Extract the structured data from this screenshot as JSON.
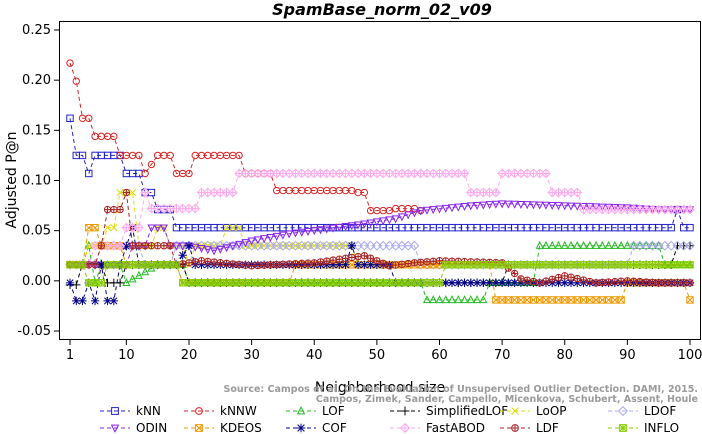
{
  "chart_data": {
    "type": "line",
    "title": "SpamBase_norm_02_v09",
    "xlabel": "Neighborhood size",
    "ylabel": "Adjusted P@n",
    "xlim": [
      1,
      100
    ],
    "ylim": [
      -0.05,
      0.25
    ],
    "x_ticks": [
      1,
      10,
      20,
      30,
      40,
      50,
      60,
      70,
      80,
      90,
      100
    ],
    "y_ticks": [
      "-0.05",
      "0.00",
      "0.05",
      "0.10",
      "0.15",
      "0.20",
      "0.25"
    ],
    "legend_position": "bottom",
    "watermark": [
      "Source: Campos et al. On the Evaluation of Unsupervised Outlier Detection. DAMI, 2015.",
      "Campos, Zimek, Sander, Campello, Micenkova, Schubert, Assent, Houle"
    ],
    "series": [
      {
        "name": "kNN",
        "color": "#2222cc",
        "marker": "square",
        "points": [
          [
            1,
            0.162
          ],
          [
            2,
            0.125
          ],
          [
            3,
            0.125
          ],
          [
            4,
            0.107
          ],
          [
            5,
            0.125
          ],
          [
            9,
            0.125
          ],
          [
            10,
            0.107
          ],
          [
            12,
            0.107
          ],
          [
            13,
            0.088
          ],
          [
            14,
            0.088
          ],
          [
            15,
            0.071
          ],
          [
            17,
            0.071
          ],
          [
            18,
            0.053
          ],
          [
            97,
            0.053
          ],
          [
            98,
            0.071
          ],
          [
            99,
            0.053
          ],
          [
            100,
            0.053
          ]
        ]
      },
      {
        "name": "kNNW",
        "color": "#dd2222",
        "marker": "circle",
        "points": [
          [
            1,
            0.217
          ],
          [
            2,
            0.199
          ],
          [
            3,
            0.162
          ],
          [
            4,
            0.162
          ],
          [
            5,
            0.144
          ],
          [
            8,
            0.144
          ],
          [
            9,
            0.125
          ],
          [
            12,
            0.125
          ],
          [
            13,
            0.107
          ],
          [
            15,
            0.125
          ],
          [
            17,
            0.125
          ],
          [
            18,
            0.107
          ],
          [
            20,
            0.107
          ],
          [
            21,
            0.125
          ],
          [
            28,
            0.125
          ],
          [
            29,
            0.107
          ],
          [
            33,
            0.107
          ],
          [
            34,
            0.09
          ],
          [
            46,
            0.09
          ],
          [
            47,
            0.088
          ],
          [
            48,
            0.088
          ],
          [
            49,
            0.07
          ],
          [
            52,
            0.07
          ],
          [
            53,
            0.072
          ],
          [
            56,
            0.072
          ],
          [
            57,
            0.07
          ]
        ]
      },
      {
        "name": "LOF",
        "color": "#22bb22",
        "marker": "triangle-up",
        "points": [
          [
            1,
            0.016
          ],
          [
            3,
            0.016
          ],
          [
            4,
            0.035
          ],
          [
            5,
            -0.002
          ],
          [
            6,
            0.016
          ],
          [
            9,
            0.016
          ],
          [
            10,
            -0.002
          ],
          [
            15,
            0.016
          ],
          [
            19,
            0.016
          ],
          [
            20,
            -0.002
          ],
          [
            57,
            -0.002
          ],
          [
            58,
            -0.019
          ],
          [
            67,
            -0.019
          ],
          [
            68,
            -0.002
          ],
          [
            75,
            -0.002
          ],
          [
            76,
            0.035
          ],
          [
            95,
            0.035
          ],
          [
            96,
            0.016
          ],
          [
            100,
            0.016
          ]
        ]
      },
      {
        "name": "SimplifiedLOF",
        "color": "#000000",
        "marker": "plus",
        "points": [
          [
            1,
            -0.004
          ],
          [
            2,
            -0.004
          ],
          [
            3,
            0.017
          ],
          [
            6,
            0.017
          ],
          [
            7,
            -0.002
          ],
          [
            9,
            -0.002
          ],
          [
            10,
            0.016
          ],
          [
            19,
            0.016
          ],
          [
            20,
            -0.002
          ],
          [
            70,
            -0.002
          ],
          [
            71,
            0.016
          ],
          [
            80,
            0.016
          ],
          [
            97,
            0.016
          ],
          [
            98,
            0.035
          ],
          [
            100,
            0.035
          ]
        ]
      },
      {
        "name": "LoOP",
        "color": "#dddd00",
        "marker": "x",
        "points": [
          [
            1,
            0.017
          ],
          [
            3,
            0.017
          ],
          [
            4,
            0.035
          ],
          [
            6,
            0.035
          ],
          [
            7,
            0.053
          ],
          [
            8,
            0.053
          ],
          [
            9,
            0.088
          ],
          [
            11,
            0.088
          ],
          [
            12,
            0.035
          ],
          [
            14,
            0.035
          ],
          [
            15,
            0.053
          ],
          [
            16,
            0.053
          ],
          [
            17,
            0.035
          ],
          [
            19,
            0.035
          ],
          [
            20,
            0.016
          ],
          [
            21,
            0.035
          ],
          [
            25,
            0.035
          ],
          [
            26,
            0.053
          ],
          [
            28,
            0.053
          ],
          [
            29,
            0.035
          ],
          [
            46,
            0.035
          ],
          [
            47,
            0.016
          ],
          [
            100,
            0.016
          ]
        ]
      },
      {
        "name": "LDOF",
        "color": "#aaaaee",
        "marker": "diamond",
        "points": [
          [
            1,
            0.016
          ],
          [
            5,
            0.016
          ],
          [
            6,
            0.035
          ],
          [
            12,
            0.035
          ],
          [
            13,
            0.016
          ],
          [
            17,
            0.016
          ],
          [
            18,
            0.035
          ],
          [
            56,
            0.035
          ],
          [
            57,
            0.016
          ],
          [
            90,
            0.016
          ],
          [
            91,
            0.035
          ],
          [
            100,
            0.035
          ]
        ]
      },
      {
        "name": "ODIN",
        "color": "#8822ee",
        "marker": "triangle-down",
        "points": [
          [
            1,
            0.016
          ],
          [
            10,
            0.016
          ],
          [
            11,
            0.035
          ],
          [
            13,
            0.035
          ],
          [
            14,
            0.053
          ],
          [
            16,
            0.053
          ],
          [
            17,
            0.035
          ],
          [
            20,
            0.035
          ],
          [
            24,
            0.03
          ],
          [
            30,
            0.04
          ],
          [
            36,
            0.047
          ],
          [
            42,
            0.052
          ],
          [
            47,
            0.056
          ],
          [
            53,
            0.062
          ],
          [
            57,
            0.07
          ],
          [
            65,
            0.075
          ],
          [
            70,
            0.077
          ],
          [
            80,
            0.075
          ],
          [
            90,
            0.073
          ],
          [
            95,
            0.071
          ],
          [
            100,
            0.071
          ]
        ]
      },
      {
        "name": "KDEOS",
        "color": "#ee9900",
        "marker": "square-x",
        "points": [
          [
            1,
            0.016
          ],
          [
            3,
            0.016
          ],
          [
            4,
            0.053
          ],
          [
            5,
            0.053
          ],
          [
            6,
            0.035
          ],
          [
            9,
            0.035
          ],
          [
            10,
            0.016
          ],
          [
            18,
            0.016
          ],
          [
            19,
            -0.002
          ],
          [
            36,
            -0.002
          ],
          [
            37,
            0.016
          ],
          [
            68,
            0.016
          ],
          [
            69,
            -0.019
          ],
          [
            89,
            -0.019
          ],
          [
            90,
            -0.002
          ],
          [
            99,
            -0.002
          ],
          [
            100,
            -0.019
          ]
        ]
      },
      {
        "name": "COF",
        "color": "#000088",
        "marker": "asterisk",
        "points": [
          [
            1,
            -0.002
          ],
          [
            2,
            -0.02
          ],
          [
            3,
            -0.02
          ],
          [
            4,
            -0.002
          ],
          [
            5,
            -0.02
          ],
          [
            6,
            0.016
          ],
          [
            7,
            -0.02
          ],
          [
            8,
            -0.02
          ],
          [
            9,
            0.016
          ],
          [
            11,
            0.053
          ],
          [
            12,
            0.016
          ],
          [
            18,
            0.016
          ],
          [
            20,
            0.035
          ],
          [
            21,
            0.016
          ],
          [
            45,
            0.016
          ],
          [
            46,
            0.035
          ],
          [
            47,
            0.016
          ],
          [
            52,
            0.016
          ],
          [
            53,
            -0.002
          ],
          [
            100,
            -0.002
          ]
        ]
      },
      {
        "name": "FastABOD",
        "color": "#ffaaee",
        "marker": "diamond-plus",
        "points": [
          [
            1,
            0.016
          ],
          [
            4,
            0.016
          ],
          [
            5,
            0.035
          ],
          [
            9,
            0.035
          ],
          [
            10,
            0.053
          ],
          [
            12,
            0.053
          ],
          [
            13,
            0.088
          ],
          [
            14,
            0.072
          ],
          [
            21,
            0.072
          ],
          [
            22,
            0.088
          ],
          [
            27,
            0.088
          ],
          [
            28,
            0.107
          ],
          [
            55,
            0.107
          ],
          [
            56,
            0.107
          ],
          [
            64,
            0.107
          ],
          [
            65,
            0.088
          ],
          [
            69,
            0.088
          ],
          [
            70,
            0.107
          ],
          [
            77,
            0.107
          ],
          [
            78,
            0.088
          ],
          [
            82,
            0.088
          ],
          [
            83,
            0.071
          ],
          [
            100,
            0.071
          ]
        ]
      },
      {
        "name": "LDF",
        "color": "#aa2222",
        "marker": "circle-plus",
        "points": [
          [
            1,
            0.016
          ],
          [
            5,
            0.016
          ],
          [
            6,
            0.035
          ],
          [
            7,
            0.071
          ],
          [
            9,
            0.071
          ],
          [
            10,
            0.088
          ],
          [
            11,
            0.035
          ],
          [
            17,
            0.035
          ],
          [
            18,
            0.016
          ],
          [
            22,
            0.02
          ],
          [
            30,
            0.015
          ],
          [
            40,
            0.018
          ],
          [
            48,
            0.025
          ],
          [
            52,
            0.015
          ],
          [
            56,
            0.018
          ],
          [
            60,
            0.02
          ],
          [
            70,
            0.018
          ],
          [
            73,
            0.002
          ],
          [
            76,
            -0.002
          ],
          [
            80,
            0.005
          ],
          [
            85,
            -0.002
          ],
          [
            90,
            0.0
          ],
          [
            95,
            -0.002
          ],
          [
            100,
            -0.002
          ]
        ]
      },
      {
        "name": "INFLO",
        "color": "#88cc00",
        "marker": "square-star",
        "points": [
          [
            1,
            0.016
          ],
          [
            3,
            0.016
          ],
          [
            4,
            -0.002
          ],
          [
            6,
            -0.002
          ],
          [
            7,
            0.016
          ],
          [
            18,
            0.016
          ],
          [
            19,
            -0.002
          ],
          [
            60,
            -0.002
          ],
          [
            61,
            0.016
          ],
          [
            100,
            0.016
          ]
        ]
      }
    ]
  }
}
